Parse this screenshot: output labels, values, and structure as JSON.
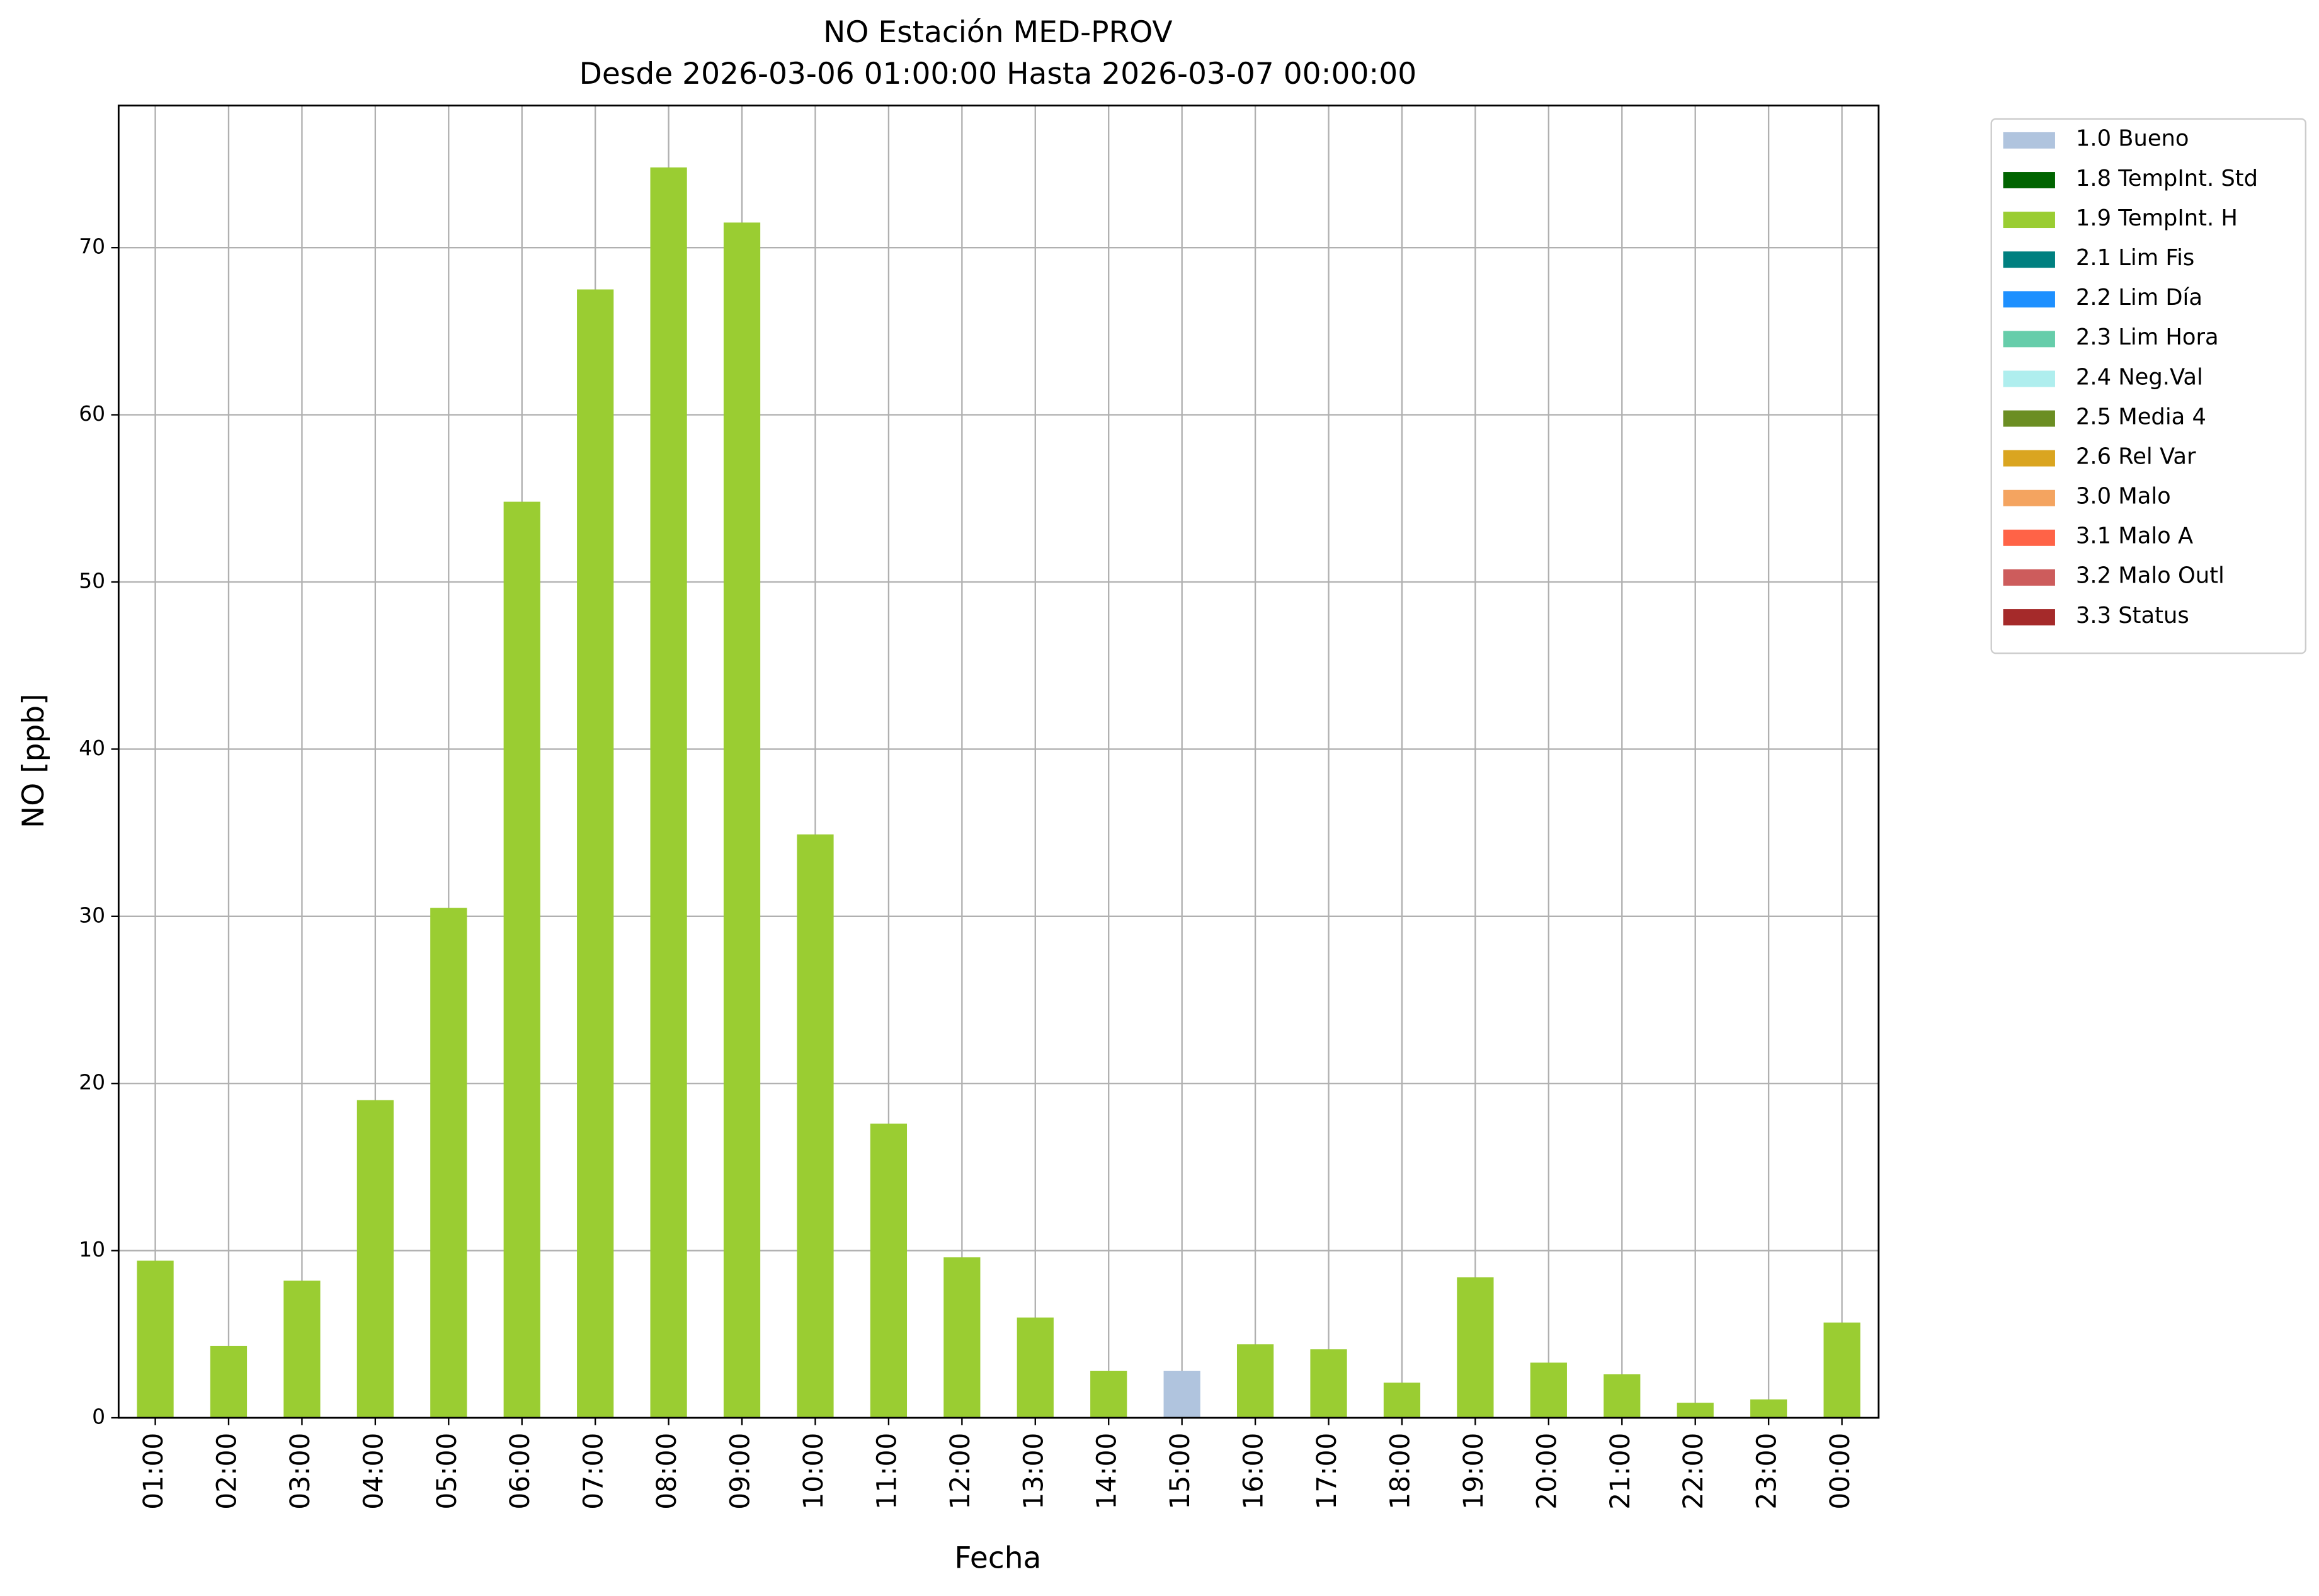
{
  "chart_data": {
    "type": "stacked-bar",
    "title": "NO Estación MED-PROV",
    "subtitle": "Desde 2026-03-06 01:00:00 Hasta 2026-03-07 00:00:00",
    "x_label": "Fecha",
    "y_label": "NO [ppb]",
    "categories": [
      "01:00",
      "02:00",
      "03:00",
      "04:00",
      "05:00",
      "06:00",
      "07:00",
      "08:00",
      "09:00",
      "10:00",
      "11:00",
      "12:00",
      "13:00",
      "14:00",
      "15:00",
      "16:00",
      "17:00",
      "18:00",
      "19:00",
      "20:00",
      "21:00",
      "22:00",
      "23:00",
      "00:00"
    ],
    "series": [
      {
        "name": "1.0 Bueno",
        "color": "#b0c4de",
        "values": [
          null,
          null,
          null,
          null,
          null,
          null,
          null,
          null,
          null,
          null,
          null,
          null,
          null,
          null,
          2.8,
          null,
          null,
          null,
          null,
          null,
          null,
          null,
          null,
          null
        ]
      },
      {
        "name": "1.8 TempInt. Std",
        "color": "#006400",
        "values": [
          null,
          null,
          null,
          null,
          null,
          null,
          null,
          null,
          null,
          null,
          null,
          null,
          null,
          null,
          null,
          null,
          null,
          null,
          null,
          null,
          null,
          null,
          null,
          null
        ]
      },
      {
        "name": "1.9 TempInt. H",
        "color": "#9acd32",
        "values": [
          9.4,
          4.3,
          8.2,
          19.0,
          30.5,
          54.8,
          67.5,
          74.8,
          71.5,
          34.9,
          17.6,
          9.6,
          6.0,
          2.8,
          null,
          4.4,
          4.1,
          2.1,
          8.4,
          3.3,
          2.6,
          0.9,
          1.1,
          5.7
        ]
      },
      {
        "name": "2.1 Lim Fis",
        "color": "#008080",
        "values": [
          null,
          null,
          null,
          null,
          null,
          null,
          null,
          null,
          null,
          null,
          null,
          null,
          null,
          null,
          null,
          null,
          null,
          null,
          null,
          null,
          null,
          null,
          null,
          null
        ]
      },
      {
        "name": "2.2 Lim Día",
        "color": "#1e90ff",
        "values": [
          null,
          null,
          null,
          null,
          null,
          null,
          null,
          null,
          null,
          null,
          null,
          null,
          null,
          null,
          null,
          null,
          null,
          null,
          null,
          null,
          null,
          null,
          null,
          null
        ]
      },
      {
        "name": "2.3 Lim Hora",
        "color": "#66cdaa",
        "values": [
          null,
          null,
          null,
          null,
          null,
          null,
          null,
          null,
          null,
          null,
          null,
          null,
          null,
          null,
          null,
          null,
          null,
          null,
          null,
          null,
          null,
          null,
          null,
          null
        ]
      },
      {
        "name": "2.4 Neg.Val",
        "color": "#afeeee",
        "values": [
          null,
          null,
          null,
          null,
          null,
          null,
          null,
          null,
          null,
          null,
          null,
          null,
          null,
          null,
          null,
          null,
          null,
          null,
          null,
          null,
          null,
          null,
          null,
          null
        ]
      },
      {
        "name": "2.5 Media 4",
        "color": "#6b8e23",
        "values": [
          null,
          null,
          null,
          null,
          null,
          null,
          null,
          null,
          null,
          null,
          null,
          null,
          null,
          null,
          null,
          null,
          null,
          null,
          null,
          null,
          null,
          null,
          null,
          null
        ]
      },
      {
        "name": "2.6 Rel Var",
        "color": "#daa520",
        "values": [
          null,
          null,
          null,
          null,
          null,
          null,
          null,
          null,
          null,
          null,
          null,
          null,
          null,
          null,
          null,
          null,
          null,
          null,
          null,
          null,
          null,
          null,
          null,
          null
        ]
      },
      {
        "name": "3.0 Malo",
        "color": "#f4a460",
        "values": [
          null,
          null,
          null,
          null,
          null,
          null,
          null,
          null,
          null,
          null,
          null,
          null,
          null,
          null,
          null,
          null,
          null,
          null,
          null,
          null,
          null,
          null,
          null,
          null
        ]
      },
      {
        "name": "3.1 Malo A",
        "color": "#ff6347",
        "values": [
          null,
          null,
          null,
          null,
          null,
          null,
          null,
          null,
          null,
          null,
          null,
          null,
          null,
          null,
          null,
          null,
          null,
          null,
          null,
          null,
          null,
          null,
          null,
          null
        ]
      },
      {
        "name": "3.2 Malo Outl",
        "color": "#cd5c5c",
        "values": [
          null,
          null,
          null,
          null,
          null,
          null,
          null,
          null,
          null,
          null,
          null,
          null,
          null,
          null,
          null,
          null,
          null,
          null,
          null,
          null,
          null,
          null,
          null,
          null
        ]
      },
      {
        "name": "3.3 Status",
        "color": "#a52a2a",
        "values": [
          null,
          null,
          null,
          null,
          null,
          null,
          null,
          null,
          null,
          null,
          null,
          null,
          null,
          null,
          null,
          null,
          null,
          null,
          null,
          null,
          null,
          null,
          null,
          null
        ]
      }
    ],
    "ylim": [
      0,
      78.5
    ],
    "yticks": [
      0,
      10,
      20,
      30,
      40,
      50,
      60,
      70
    ],
    "grid": true,
    "legend": "outside-right"
  }
}
